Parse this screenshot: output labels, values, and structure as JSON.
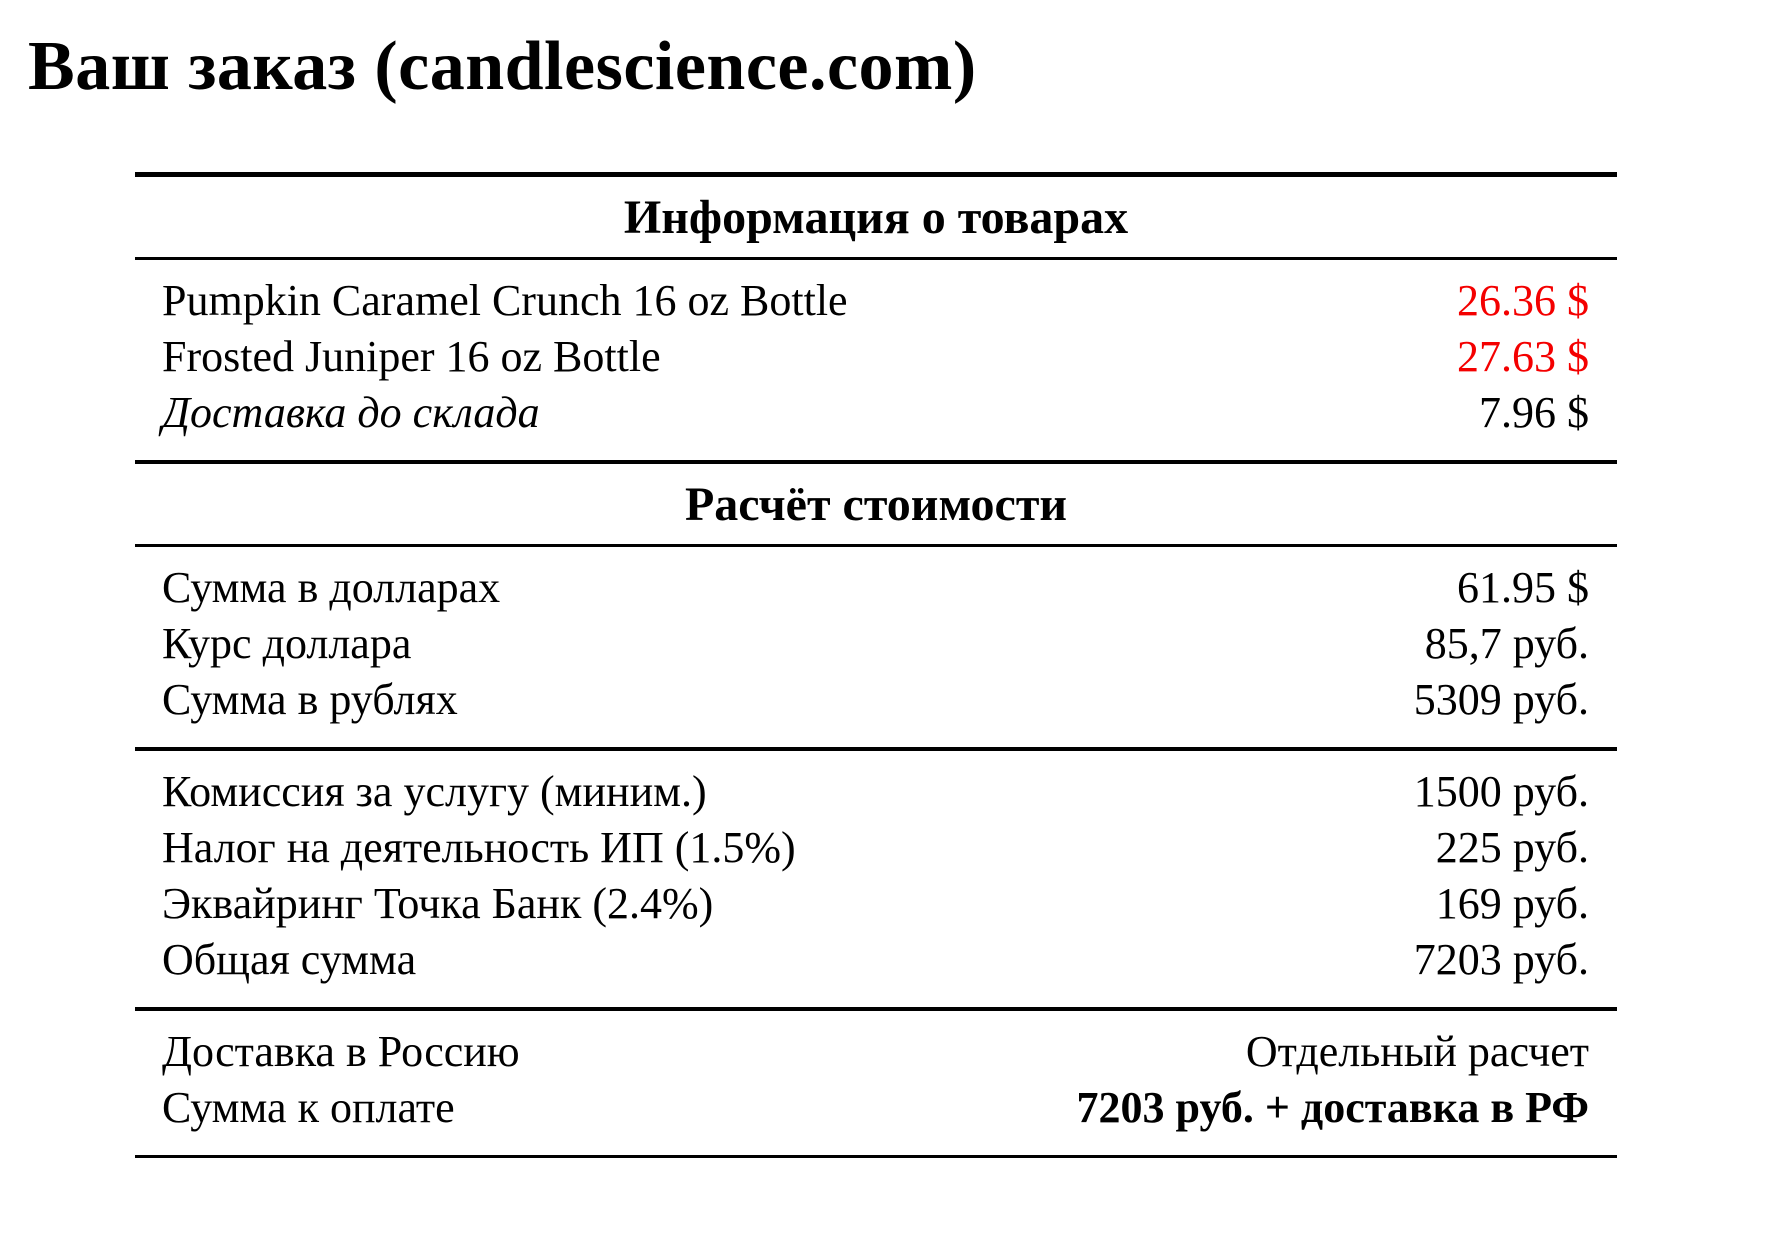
{
  "page_title": "Ваш заказ (candlescience.com)",
  "colors": {
    "text": "#000000",
    "price_highlight": "#f40000",
    "background": "#ffffff"
  },
  "order_table": {
    "products_header": "Информация о товарах",
    "products": [
      {
        "label": "Pumpkin Caramel Crunch 16 oz Bottle",
        "value": "26.36 $"
      },
      {
        "label": "Frosted Juniper 16 oz Bottle",
        "value": "27.63 $"
      },
      {
        "label": "Доставка до склада",
        "value": "7.96 $"
      }
    ],
    "calculation_header": "Расчёт стоимости",
    "conversion": [
      {
        "label": "Сумма в долларах",
        "value": "61.95 $"
      },
      {
        "label": "Курс доллара",
        "value": "85,7 руб."
      },
      {
        "label": "Сумма в рублях",
        "value": "5309 руб."
      }
    ],
    "fees": [
      {
        "label": "Комиссия за услугу (миним.)",
        "value": "1500 руб."
      },
      {
        "label": "Налог на деятельность ИП (1.5%)",
        "value": "225 руб."
      },
      {
        "label": "Эквайринг Точка Банк (2.4%)",
        "value": "169 руб."
      },
      {
        "label": "Общая сумма",
        "value": "7203 руб."
      }
    ],
    "final": [
      {
        "label": "Доставка в Россию",
        "value": "Отдельный расчет"
      },
      {
        "label": "Сумма к оплате",
        "value": "7203 руб. + доставка в РФ"
      }
    ]
  }
}
